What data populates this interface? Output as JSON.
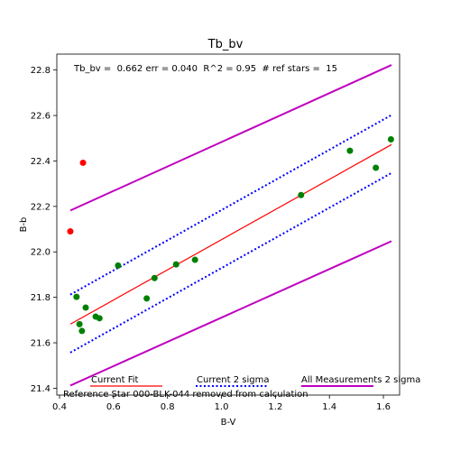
{
  "chart_data": {
    "type": "scatter",
    "title": "Tb_bv",
    "xlabel": "B-V",
    "ylabel": "B-b",
    "xlim": [
      0.39,
      1.66
    ],
    "ylim": [
      21.37,
      22.87
    ],
    "xticks": [
      0.4,
      0.6,
      0.8,
      1.0,
      1.2,
      1.4,
      1.6
    ],
    "xtick_labels": [
      "0.4",
      "0.6",
      "0.8",
      "1.0",
      "1.2",
      "1.4",
      "1.6"
    ],
    "yticks": [
      21.4,
      21.6,
      21.8,
      22.0,
      22.2,
      22.4,
      22.6,
      22.8
    ],
    "ytick_labels": [
      "21.4",
      "21.6",
      "21.8",
      "22.0",
      "22.2",
      "22.4",
      "22.6",
      "22.8"
    ],
    "grid": false,
    "annotation": "Tb_bv =  0.662 err = 0.040  R^2 = 0.95  # ref stars =  15",
    "series": [
      {
        "name": "Current Fit",
        "type": "line",
        "style": "solid",
        "color": "#ff0000",
        "points": [
          [
            0.44,
            21.682
          ],
          [
            1.63,
            22.472
          ]
        ]
      },
      {
        "name": "Current 2 sigma",
        "type": "line",
        "style": "dotted",
        "color": "#0000ff",
        "upper": [
          [
            0.44,
            21.812
          ],
          [
            1.63,
            22.602
          ]
        ],
        "lower": [
          [
            0.44,
            21.557
          ],
          [
            1.63,
            22.347
          ]
        ]
      },
      {
        "name": "All Measurements 2 sigma",
        "type": "line",
        "style": "solid",
        "color": "#bf00bf",
        "upper": [
          [
            0.44,
            22.182
          ],
          [
            1.63,
            22.822
          ]
        ],
        "lower": [
          [
            0.44,
            21.412
          ],
          [
            1.63,
            22.047
          ]
        ]
      }
    ],
    "ref_points": {
      "color": "#008000",
      "points": [
        [
          0.463,
          21.802
        ],
        [
          0.474,
          21.682
        ],
        [
          0.483,
          21.652
        ],
        [
          0.497,
          21.755
        ],
        [
          0.534,
          21.715
        ],
        [
          0.548,
          21.708
        ],
        [
          0.617,
          21.94
        ],
        [
          0.723,
          21.795
        ],
        [
          0.752,
          21.885
        ],
        [
          0.832,
          21.945
        ],
        [
          0.902,
          21.965
        ],
        [
          1.295,
          22.25
        ],
        [
          1.476,
          22.445
        ],
        [
          1.572,
          22.37
        ],
        [
          1.628,
          22.495
        ]
      ]
    },
    "rejected_points": {
      "color": "#ff0000",
      "points": [
        [
          0.44,
          22.09
        ],
        [
          0.487,
          22.392
        ]
      ]
    },
    "legend": {
      "placement": "bottom",
      "entries": [
        "Current Fit",
        "Current 2 sigma",
        "All Measurements 2 sigma"
      ]
    },
    "note": "Reference Star 000-BLK-044 removed from calculation"
  }
}
